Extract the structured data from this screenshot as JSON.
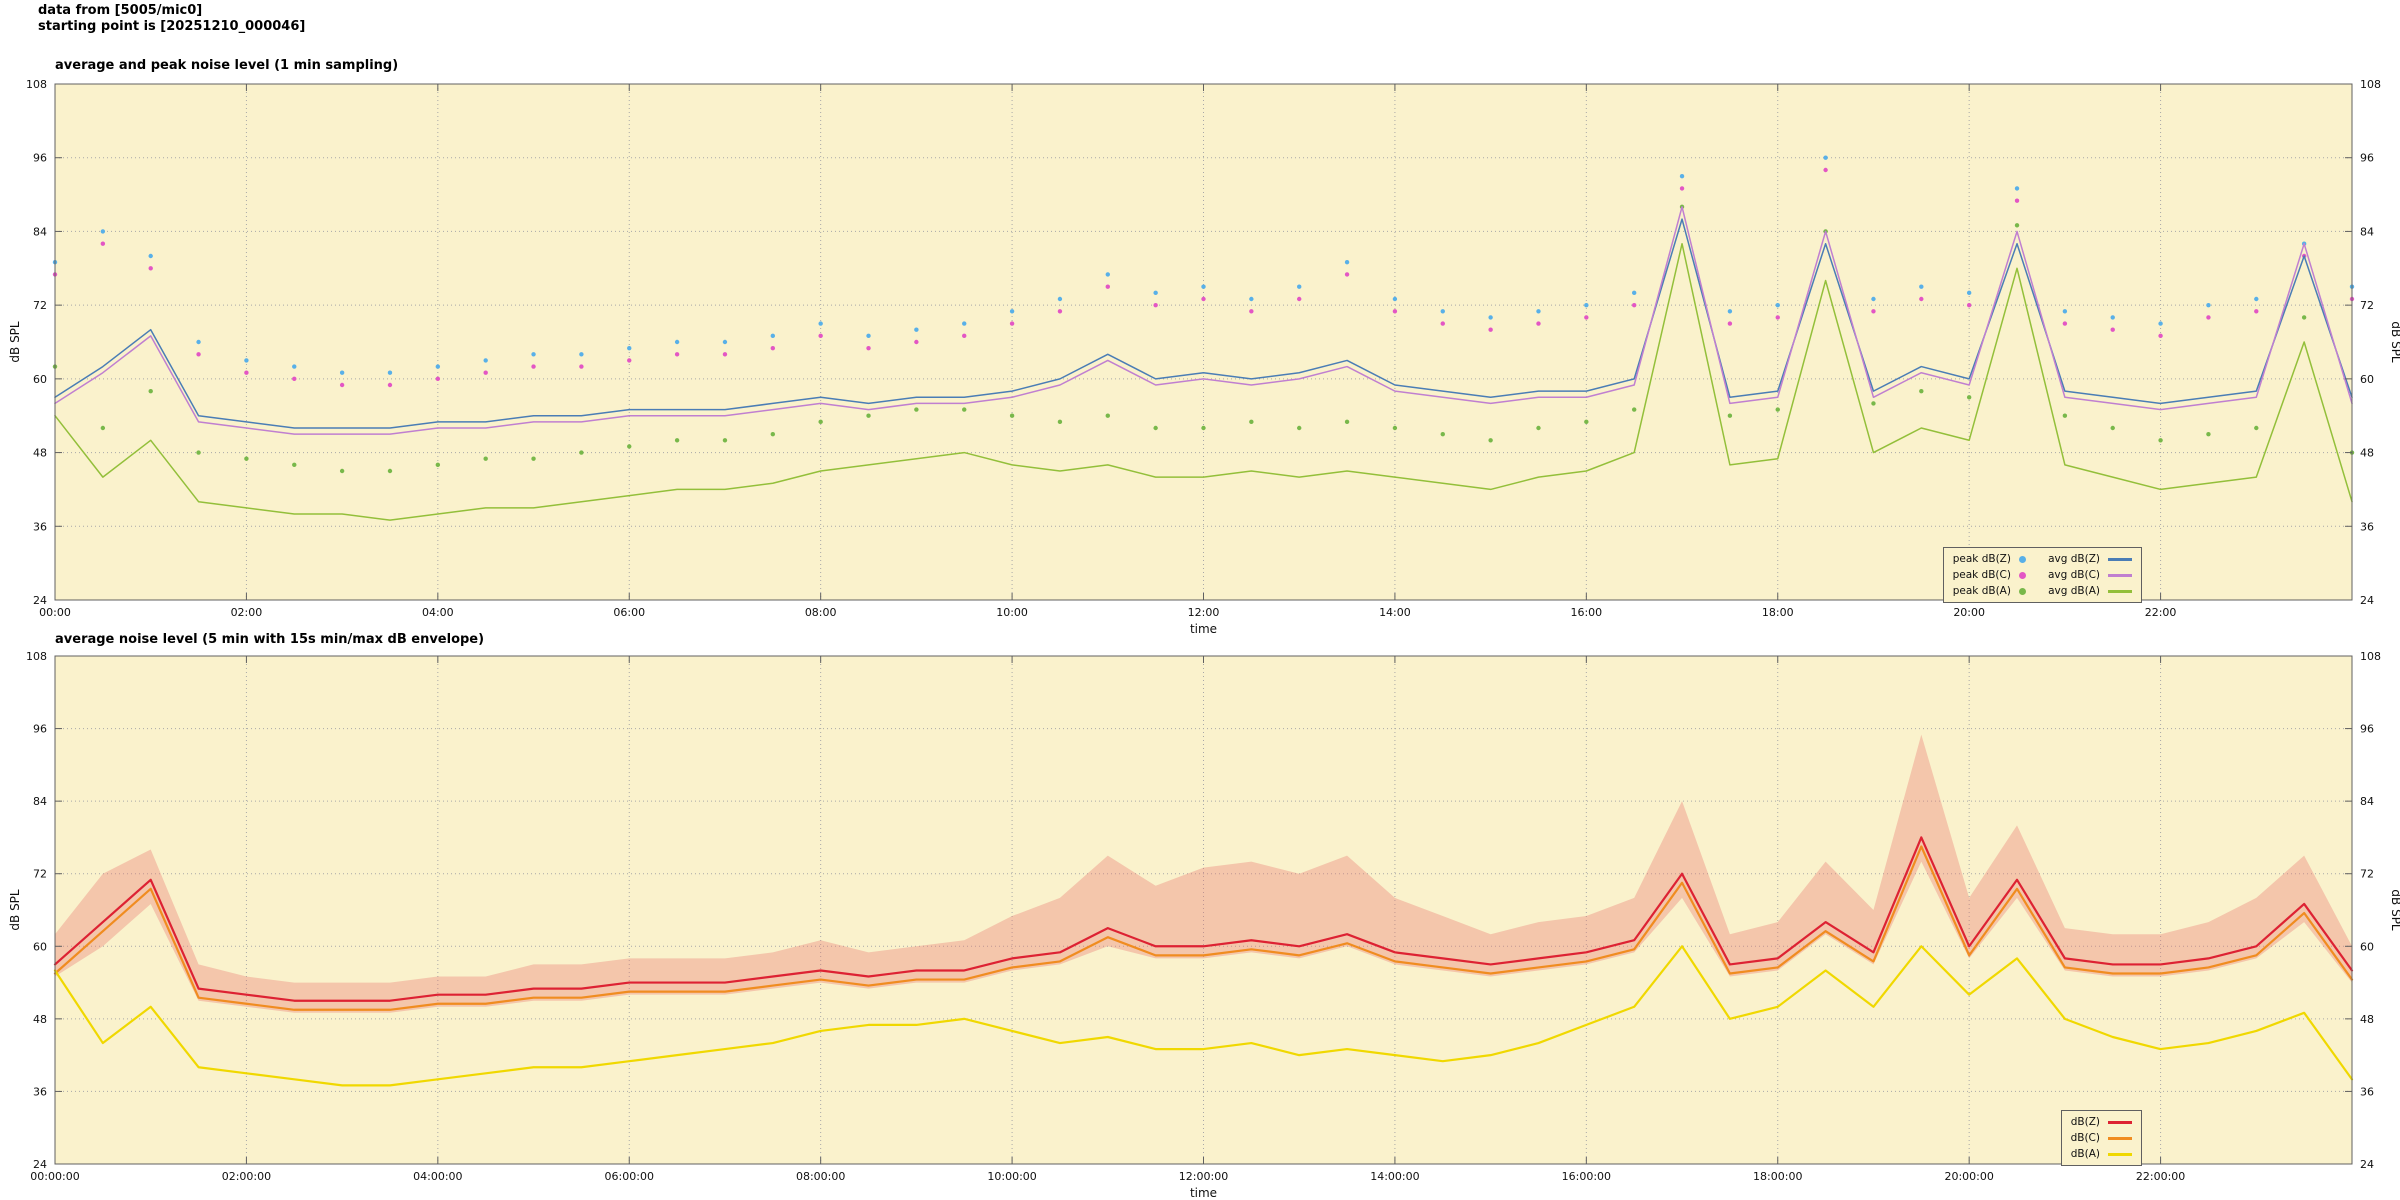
{
  "header": {
    "line1": "data from [5005/mic0]",
    "line2": "starting point is [20251210_000046]"
  },
  "colors": {
    "plot_bg": "#faf2cc",
    "grid": "#a8a8a8",
    "frame": "#606060",
    "text": "#101010"
  },
  "chart_data": [
    {
      "type": "line",
      "subtype": "lines and scatter points",
      "title": "average and peak noise level (1 min sampling)",
      "xlabel": "time",
      "ylabel": "dB SPL",
      "ylabel_right": "dB SPL",
      "ylim": [
        24,
        108
      ],
      "yticks": [
        24,
        36,
        48,
        60,
        72,
        84,
        96,
        108
      ],
      "xlim_hours": [
        0,
        24
      ],
      "xtick_interval_hours": 2,
      "xtick_labels": [
        "00:00",
        "02:00",
        "04:00",
        "06:00",
        "08:00",
        "10:00",
        "12:00",
        "14:00",
        "16:00",
        "18:00",
        "20:00",
        "22:00"
      ],
      "grid": "dotted major grid on",
      "legend_position": "bottom-right inside",
      "sampling_interval_minutes": 30,
      "x_hours": [
        0,
        0.5,
        1,
        1.5,
        2,
        2.5,
        3,
        3.5,
        4,
        4.5,
        5,
        5.5,
        6,
        6.5,
        7,
        7.5,
        8,
        8.5,
        9,
        9.5,
        10,
        10.5,
        11,
        11.5,
        12,
        12.5,
        13,
        13.5,
        14,
        14.5,
        15,
        15.5,
        16,
        16.5,
        17,
        17.5,
        18,
        18.5,
        19,
        19.5,
        20,
        20.5,
        21,
        21.5,
        22,
        22.5,
        23,
        23.5,
        24
      ],
      "series": [
        {
          "name": "peak dB(Z)",
          "style": "scatter",
          "color": "#58b0e8",
          "values": [
            79,
            84,
            80,
            66,
            63,
            62,
            61,
            61,
            62,
            63,
            64,
            64,
            65,
            66,
            66,
            67,
            69,
            67,
            68,
            69,
            71,
            73,
            77,
            74,
            75,
            73,
            75,
            79,
            73,
            71,
            70,
            71,
            72,
            74,
            93,
            71,
            72,
            96,
            73,
            75,
            74,
            91,
            71,
            70,
            69,
            72,
            73,
            82,
            75
          ]
        },
        {
          "name": "peak dB(C)",
          "style": "scatter",
          "color": "#e356c4",
          "values": [
            77,
            82,
            78,
            64,
            61,
            60,
            59,
            59,
            60,
            61,
            62,
            62,
            63,
            64,
            64,
            65,
            67,
            65,
            66,
            67,
            69,
            71,
            75,
            72,
            73,
            71,
            73,
            77,
            71,
            69,
            68,
            69,
            70,
            72,
            91,
            69,
            70,
            94,
            71,
            73,
            72,
            89,
            69,
            68,
            67,
            70,
            71,
            80,
            73
          ]
        },
        {
          "name": "peak dB(A)",
          "style": "scatter",
          "color": "#78b84a",
          "values": [
            62,
            52,
            58,
            48,
            47,
            46,
            45,
            45,
            46,
            47,
            47,
            48,
            49,
            50,
            50,
            51,
            53,
            54,
            55,
            55,
            54,
            53,
            54,
            52,
            52,
            53,
            52,
            53,
            52,
            51,
            50,
            52,
            53,
            55,
            88,
            54,
            55,
            84,
            56,
            58,
            57,
            85,
            54,
            52,
            50,
            51,
            52,
            70,
            48
          ]
        },
        {
          "name": "avg dB(Z)",
          "style": "line",
          "color": "#4a7db5",
          "width": 1.5,
          "values": [
            57,
            62,
            68,
            54,
            53,
            52,
            52,
            52,
            53,
            53,
            54,
            54,
            55,
            55,
            55,
            56,
            57,
            56,
            57,
            57,
            58,
            60,
            64,
            60,
            61,
            60,
            61,
            63,
            59,
            58,
            57,
            58,
            58,
            60,
            86,
            57,
            58,
            82,
            58,
            62,
            60,
            82,
            58,
            57,
            56,
            57,
            58,
            80,
            57
          ]
        },
        {
          "name": "avg dB(C)",
          "style": "line",
          "color": "#c07fd0",
          "width": 1.5,
          "values": [
            56,
            61,
            67,
            53,
            52,
            51,
            51,
            51,
            52,
            52,
            53,
            53,
            54,
            54,
            54,
            55,
            56,
            55,
            56,
            56,
            57,
            59,
            63,
            59,
            60,
            59,
            60,
            62,
            58,
            57,
            56,
            57,
            57,
            59,
            88,
            56,
            57,
            84,
            57,
            61,
            59,
            84,
            57,
            56,
            55,
            56,
            57,
            82,
            56
          ]
        },
        {
          "name": "avg dB(A)",
          "style": "line",
          "color": "#93bf3a",
          "width": 1.5,
          "values": [
            54,
            44,
            50,
            40,
            39,
            38,
            38,
            37,
            38,
            39,
            39,
            40,
            41,
            42,
            42,
            43,
            45,
            46,
            47,
            48,
            46,
            45,
            46,
            44,
            44,
            45,
            44,
            45,
            44,
            43,
            42,
            44,
            45,
            48,
            82,
            46,
            47,
            76,
            48,
            52,
            50,
            78,
            46,
            44,
            42,
            43,
            44,
            66,
            40
          ]
        }
      ],
      "legend": {
        "columns": [
          [
            "peak dB(Z)",
            "peak dB(C)",
            "peak dB(A)"
          ],
          [
            "avg dB(Z)",
            "avg dB(C)",
            "avg dB(A)"
          ]
        ]
      },
      "notable_spikes": [
        {
          "time": "00:05",
          "approx_dB": 84
        },
        {
          "time": "01:05",
          "approx_dB": 71
        },
        {
          "time": "16:50",
          "approx_dB": 88
        },
        {
          "time": "18:45",
          "approx_dB": 96
        },
        {
          "time": "20:40",
          "approx_dB": 91
        },
        {
          "time": "23:30",
          "approx_dB": 82
        }
      ]
    },
    {
      "type": "line",
      "subtype": "lines with min/max envelope band",
      "title": "average noise level (5 min with 15s min/max dB envelope)",
      "xlabel": "time",
      "ylabel": "dB SPL",
      "ylabel_right": "dB SPL",
      "ylim": [
        24,
        108
      ],
      "yticks": [
        24,
        36,
        48,
        60,
        72,
        84,
        96,
        108
      ],
      "xlim_hours": [
        0,
        24
      ],
      "xtick_interval_hours": 2,
      "xtick_labels": [
        "00:00:00",
        "02:00:00",
        "04:00:00",
        "06:00:00",
        "08:00:00",
        "10:00:00",
        "12:00:00",
        "14:00:00",
        "16:00:00",
        "18:00:00",
        "20:00:00",
        "22:00:00"
      ],
      "grid": "dotted major grid on",
      "legend_position": "bottom-right inside",
      "sampling_interval_minutes": 30,
      "x_hours": [
        0,
        0.5,
        1,
        1.5,
        2,
        2.5,
        3,
        3.5,
        4,
        4.5,
        5,
        5.5,
        6,
        6.5,
        7,
        7.5,
        8,
        8.5,
        9,
        9.5,
        10,
        10.5,
        11,
        11.5,
        12,
        12.5,
        13,
        13.5,
        14,
        14.5,
        15,
        15.5,
        16,
        16.5,
        17,
        17.5,
        18,
        18.5,
        19,
        19.5,
        20,
        20.5,
        21,
        21.5,
        22,
        22.5,
        23,
        23.5,
        24
      ],
      "band": {
        "name": "15s min/max dB envelope",
        "color": "rgba(231,118,108,0.35)",
        "min": [
          55,
          60,
          67,
          51,
          50,
          49,
          49,
          49,
          50,
          50,
          51,
          51,
          52,
          52,
          52,
          53,
          54,
          53,
          54,
          54,
          56,
          57,
          60,
          58,
          58,
          59,
          58,
          60,
          57,
          56,
          55,
          56,
          57,
          59,
          68,
          55,
          56,
          62,
          57,
          74,
          58,
          68,
          56,
          55,
          55,
          56,
          58,
          64,
          54
        ],
        "max": [
          62,
          72,
          76,
          57,
          55,
          54,
          54,
          54,
          55,
          55,
          57,
          57,
          58,
          58,
          58,
          59,
          61,
          59,
          60,
          61,
          65,
          68,
          75,
          70,
          73,
          74,
          72,
          75,
          68,
          65,
          62,
          64,
          65,
          68,
          84,
          62,
          64,
          74,
          66,
          95,
          68,
          80,
          63,
          62,
          62,
          64,
          68,
          75,
          60
        ]
      },
      "series": [
        {
          "name": "dB(Z)",
          "style": "line",
          "color": "#dd2233",
          "width": 2.2,
          "values": [
            57,
            64,
            71,
            53,
            52,
            51,
            51,
            51,
            52,
            52,
            53,
            53,
            54,
            54,
            54,
            55,
            56,
            55,
            56,
            56,
            58,
            59,
            63,
            60,
            60,
            61,
            60,
            62,
            59,
            58,
            57,
            58,
            59,
            61,
            72,
            57,
            58,
            64,
            59,
            78,
            60,
            71,
            58,
            57,
            57,
            58,
            60,
            67,
            56
          ]
        },
        {
          "name": "dB(C)",
          "style": "line",
          "color": "#f08c20",
          "width": 2.2,
          "values": [
            55.5,
            62.5,
            69.5,
            51.5,
            50.5,
            49.5,
            49.5,
            49.5,
            50.5,
            50.5,
            51.5,
            51.5,
            52.5,
            52.5,
            52.5,
            53.5,
            54.5,
            53.5,
            54.5,
            54.5,
            56.5,
            57.5,
            61.5,
            58.5,
            58.5,
            59.5,
            58.5,
            60.5,
            57.5,
            56.5,
            55.5,
            56.5,
            57.5,
            59.5,
            70.5,
            55.5,
            56.5,
            62.5,
            57.5,
            76.5,
            58.5,
            69.5,
            56.5,
            55.5,
            55.5,
            56.5,
            58.5,
            65.5,
            54.5
          ]
        },
        {
          "name": "dB(A)",
          "style": "line",
          "color": "#f0d800",
          "width": 2.2,
          "values": [
            56,
            44,
            50,
            40,
            39,
            38,
            37,
            37,
            38,
            39,
            40,
            40,
            41,
            42,
            43,
            44,
            46,
            47,
            47,
            48,
            46,
            44,
            45,
            43,
            43,
            44,
            42,
            43,
            42,
            41,
            42,
            44,
            47,
            50,
            60,
            48,
            50,
            56,
            50,
            60,
            52,
            58,
            48,
            45,
            43,
            44,
            46,
            49,
            38
          ]
        }
      ],
      "legend": {
        "columns": [
          [
            "dB(Z)",
            "dB(C)",
            "dB(A)"
          ]
        ]
      },
      "notable_spikes": [
        {
          "time": "00:10",
          "approx_dB": 72
        },
        {
          "time": "01:05",
          "approx_dB": 71
        },
        {
          "time": "16:50",
          "approx_dB": 72
        },
        {
          "time": "19:45",
          "approx_dB": 78
        },
        {
          "time": "20:40",
          "approx_dB": 71
        },
        {
          "time": "23:30",
          "approx_dB": 67
        }
      ]
    }
  ]
}
